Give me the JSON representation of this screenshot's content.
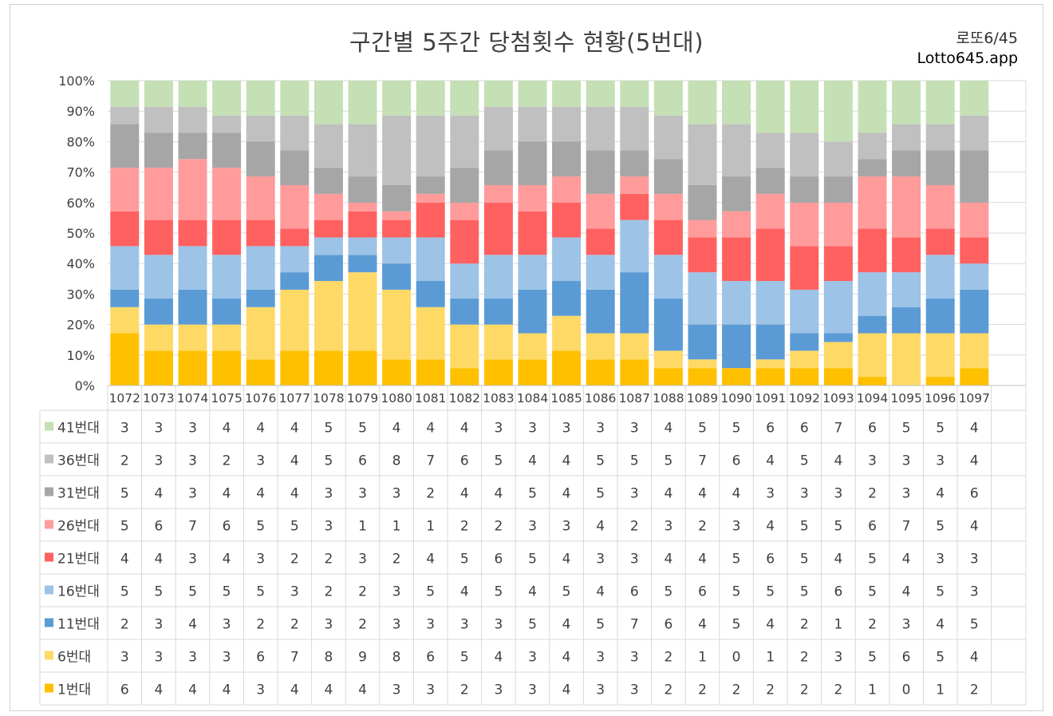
{
  "header": {
    "title": "구간별 5주간 당첨횟수 현황(5번대)",
    "brand_line1": "로또6/45",
    "brand_line2": "Lotto645.app"
  },
  "chart_data": {
    "type": "bar",
    "stacked": "percent",
    "title": "구간별 5주간 당첨횟수 현황(5번대)",
    "xlabel": "",
    "ylabel": "",
    "ylim": [
      0,
      100
    ],
    "yticks": [
      "0%",
      "10%",
      "20%",
      "30%",
      "40%",
      "50%",
      "60%",
      "70%",
      "80%",
      "90%",
      "100%"
    ],
    "grid": true,
    "legend": "table-left",
    "categories": [
      "1072",
      "1073",
      "1074",
      "1075",
      "1076",
      "1077",
      "1078",
      "1079",
      "1080",
      "1081",
      "1082",
      "1083",
      "1084",
      "1085",
      "1086",
      "1087",
      "1088",
      "1089",
      "1090",
      "1091",
      "1092",
      "1093",
      "1094",
      "1095",
      "1096",
      "1097"
    ],
    "series": [
      {
        "name": "1번대",
        "color": "#FFC000",
        "values": [
          6,
          4,
          4,
          4,
          3,
          4,
          4,
          4,
          3,
          3,
          2,
          3,
          3,
          4,
          3,
          3,
          2,
          2,
          2,
          2,
          2,
          2,
          1,
          0,
          1,
          2
        ]
      },
      {
        "name": "6번대",
        "color": "#FFD966",
        "values": [
          3,
          3,
          3,
          3,
          6,
          7,
          8,
          9,
          8,
          6,
          5,
          4,
          3,
          4,
          3,
          3,
          2,
          1,
          0,
          1,
          2,
          3,
          5,
          6,
          5,
          4
        ]
      },
      {
        "name": "11번대",
        "color": "#5B9BD5",
        "values": [
          2,
          3,
          4,
          3,
          2,
          2,
          3,
          2,
          3,
          3,
          3,
          3,
          5,
          4,
          5,
          7,
          6,
          4,
          5,
          4,
          2,
          1,
          2,
          3,
          4,
          5
        ]
      },
      {
        "name": "16번대",
        "color": "#9DC3E6",
        "values": [
          5,
          5,
          5,
          5,
          5,
          3,
          2,
          2,
          3,
          5,
          4,
          5,
          4,
          5,
          4,
          6,
          5,
          6,
          5,
          5,
          5,
          6,
          5,
          4,
          5,
          3
        ]
      },
      {
        "name": "21번대",
        "color": "#FF6161",
        "values": [
          4,
          4,
          3,
          4,
          3,
          2,
          2,
          3,
          2,
          4,
          5,
          6,
          5,
          4,
          3,
          3,
          4,
          4,
          5,
          6,
          5,
          4,
          5,
          4,
          3,
          3
        ]
      },
      {
        "name": "26번대",
        "color": "#FF9B9B",
        "values": [
          5,
          6,
          7,
          6,
          5,
          5,
          3,
          1,
          1,
          1,
          2,
          2,
          3,
          3,
          4,
          2,
          3,
          2,
          3,
          4,
          5,
          5,
          6,
          7,
          5,
          4
        ]
      },
      {
        "name": "31번대",
        "color": "#A6A6A6",
        "values": [
          5,
          4,
          3,
          4,
          4,
          4,
          3,
          3,
          3,
          2,
          4,
          4,
          5,
          4,
          5,
          3,
          4,
          4,
          4,
          3,
          3,
          3,
          2,
          3,
          4,
          6
        ]
      },
      {
        "name": "36번대",
        "color": "#C0C0C0",
        "values": [
          2,
          3,
          3,
          2,
          3,
          4,
          5,
          6,
          8,
          7,
          6,
          5,
          4,
          4,
          5,
          5,
          5,
          7,
          6,
          4,
          5,
          4,
          3,
          3,
          3,
          4
        ]
      },
      {
        "name": "41번대",
        "color": "#C5E0B4",
        "values": [
          3,
          3,
          3,
          4,
          4,
          4,
          5,
          5,
          4,
          4,
          4,
          3,
          3,
          3,
          3,
          3,
          4,
          5,
          5,
          6,
          6,
          7,
          6,
          5,
          5,
          4
        ]
      }
    ]
  }
}
